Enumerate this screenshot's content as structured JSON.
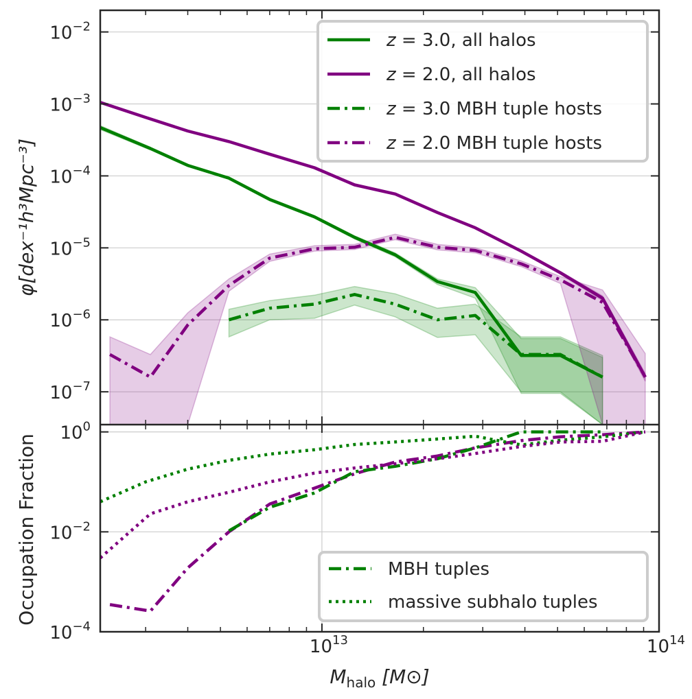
{
  "chart_data": [
    {
      "type": "line",
      "panel": "top",
      "xscale": "log",
      "yscale": "log",
      "xlim": [
        2200000000000.0,
        100000000000000.0
      ],
      "ylim": [
        3.5e-08,
        0.02
      ],
      "grid": true,
      "ylabel": "φ[dex⁻¹h³Mpc⁻³]",
      "yticks": [
        {
          "value": 0.01,
          "base": "10",
          "exp": "−2"
        },
        {
          "value": 0.001,
          "base": "10",
          "exp": "−3"
        },
        {
          "value": 0.0001,
          "base": "10",
          "exp": "−4"
        },
        {
          "value": 1e-05,
          "base": "10",
          "exp": "−5"
        },
        {
          "value": 1e-06,
          "base": "10",
          "exp": "−6"
        },
        {
          "value": 1e-07,
          "base": "10",
          "exp": "−7"
        }
      ],
      "legend": {
        "placement": "upper-right",
        "entries": [
          {
            "label": "z = 3.0, all halos",
            "color": "#008000",
            "dash": "solid"
          },
          {
            "label": "z = 2.0, all halos",
            "color": "#800080",
            "dash": "solid"
          },
          {
            "label": "z = 3.0 MBH tuple hosts",
            "color": "#008000",
            "dash": "dashdot"
          },
          {
            "label": "z = 2.0 MBH tuple hosts",
            "color": "#800080",
            "dash": "dashdot"
          }
        ]
      },
      "series": [
        {
          "name": "z = 3.0, all halos",
          "color": "#008000",
          "dash": "solid",
          "x": [
            2200000000000.0,
            3100000000000.0,
            4000000000000.0,
            5300000000000.0,
            7000000000000.0,
            9500000000000.0,
            12500000000000.0,
            16500000000000.0,
            22000000000000.0,
            28500000000000.0,
            39000000000000.0,
            51000000000000.0,
            68000000000000.0
          ],
          "y": [
            0.00047,
            0.00024,
            0.00014,
            9.3e-05,
            4.7e-05,
            2.7e-05,
            1.4e-05,
            8e-06,
            3.4e-06,
            2.4e-06,
            3.2e-07,
            3.2e-07,
            1.6e-07
          ],
          "band_low": [
            0.00044,
            0.00023,
            0.000135,
            9e-05,
            4.5e-05,
            2.6e-05,
            1.33e-05,
            7.5e-06,
            3.1e-06,
            2e-06,
            9.5e-08,
            9.5e-08,
            3.5e-08
          ],
          "band_high": [
            0.0005,
            0.00025,
            0.000145,
            9.6e-05,
            4.9e-05,
            2.8e-05,
            1.47e-05,
            8.5e-06,
            3.7e-06,
            2.8e-06,
            5.5e-07,
            5.5e-07,
            3e-07
          ]
        },
        {
          "name": "z = 2.0, all halos",
          "color": "#800080",
          "dash": "solid",
          "x": [
            2200000000000.0,
            3000000000000.0,
            4000000000000.0,
            5300000000000.0,
            7000000000000.0,
            9500000000000.0,
            12500000000000.0,
            16500000000000.0,
            22000000000000.0,
            28500000000000.0,
            39000000000000.0,
            51000000000000.0,
            68000000000000.0,
            91000000000000.0
          ],
          "y": [
            0.00105,
            0.00065,
            0.00042,
            0.0003,
            0.0002,
            0.00013,
            7.5e-05,
            5.6e-05,
            3.1e-05,
            1.9e-05,
            9e-06,
            4.5e-06,
            2e-06,
            1.6e-07
          ],
          "band_low": [
            0.00103,
            0.00064,
            0.00041,
            0.000295,
            0.000197,
            0.000128,
            7.4e-05,
            5.5e-05,
            3.05e-05,
            1.85e-05,
            8.7e-06,
            4.3e-06,
            1.85e-06,
            1.4e-07
          ],
          "band_high": [
            0.00107,
            0.00066,
            0.00043,
            0.000305,
            0.000203,
            0.000132,
            7.6e-05,
            5.7e-05,
            3.15e-05,
            1.95e-05,
            9.3e-06,
            4.7e-06,
            2.15e-06,
            1.8e-07
          ]
        },
        {
          "name": "z = 3.0 MBH tuple hosts",
          "color": "#008000",
          "dash": "dashdot",
          "x": [
            5300000000000.0,
            7000000000000.0,
            9500000000000.0,
            12500000000000.0,
            16500000000000.0,
            22000000000000.0,
            28500000000000.0,
            39000000000000.0,
            51000000000000.0,
            68000000000000.0
          ],
          "y": [
            1e-06,
            1.45e-06,
            1.65e-06,
            2.25e-06,
            1.65e-06,
            1e-06,
            1.15e-06,
            3.3e-07,
            3.3e-07,
            1.6e-07
          ],
          "band_low": [
            5.8e-07,
            1e-06,
            1.05e-06,
            1.6e-06,
            1.1e-06,
            5.7e-07,
            6.2e-07,
            1e-07,
            1e-07,
            3.5e-08
          ],
          "band_high": [
            1.4e-06,
            1.85e-06,
            2.2e-06,
            2.9e-06,
            2.3e-06,
            1.45e-06,
            1.65e-06,
            5.8e-07,
            5.8e-07,
            3.2e-07
          ]
        },
        {
          "name": "z = 2.0 MBH tuple hosts",
          "color": "#800080",
          "dash": "dashdot",
          "x": [
            2350000000000.0,
            3100000000000.0,
            4000000000000.0,
            5300000000000.0,
            7000000000000.0,
            9500000000000.0,
            12500000000000.0,
            16500000000000.0,
            22000000000000.0,
            28500000000000.0,
            39000000000000.0,
            51000000000000.0,
            68000000000000.0,
            91000000000000.0
          ],
          "y": [
            3.3e-07,
            1.6e-07,
            8.5e-07,
            3e-06,
            7.2e-06,
            9.7e-06,
            1.02e-05,
            1.4e-05,
            1.02e-05,
            9.2e-06,
            6e-06,
            3.6e-06,
            1.75e-06,
            1.6e-07
          ],
          "band_low": [
            3.5e-08,
            3.5e-08,
            3.5e-08,
            2.5e-06,
            6.5e-06,
            9e-06,
            9.5e-06,
            1.3e-05,
            9.4e-06,
            8.5e-06,
            5.5e-06,
            3.2e-06,
            3.5e-08,
            3.5e-08
          ],
          "band_high": [
            5.8e-07,
            3.3e-07,
            1.25e-06,
            3.7e-06,
            8.2e-06,
            1.07e-05,
            1.12e-05,
            1.55e-05,
            1.12e-05,
            1e-05,
            6.6e-06,
            4e-06,
            2.6e-06,
            3.4e-07
          ]
        }
      ]
    },
    {
      "type": "line",
      "panel": "bottom",
      "xscale": "log",
      "yscale": "log",
      "xlim": [
        2200000000000.0,
        100000000000000.0
      ],
      "ylim": [
        0.0001,
        1.4
      ],
      "grid": true,
      "xlabel": "M_halo [M⊙]",
      "ylabel": "Occupation Fraction",
      "xticks": [
        {
          "value": 10000000000000.0,
          "base": "10",
          "exp": "13"
        },
        {
          "value": 100000000000000.0,
          "base": "10",
          "exp": "14"
        }
      ],
      "yticks": [
        {
          "value": 1.0,
          "base": "10",
          "exp": "0"
        },
        {
          "value": 0.01,
          "base": "10",
          "exp": "−2"
        },
        {
          "value": 0.0001,
          "base": "10",
          "exp": "−4"
        }
      ],
      "legend": {
        "placement": "lower-right",
        "entries": [
          {
            "label": "MBH tuples",
            "color": "#008000",
            "dash": "dashdot"
          },
          {
            "label": "massive subhalo tuples",
            "color": "#008000",
            "dash": "dotted"
          }
        ]
      },
      "series": [
        {
          "name": "MBH tuples (z = 2.0)",
          "color": "#800080",
          "dash": "dashdot",
          "x": [
            2350000000000.0,
            3100000000000.0,
            4000000000000.0,
            5300000000000.0,
            7000000000000.0,
            9500000000000.0,
            12500000000000.0,
            16500000000000.0,
            22000000000000.0,
            28500000000000.0,
            39000000000000.0,
            51000000000000.0,
            68000000000000.0,
            91000000000000.0
          ],
          "y": [
            0.00035,
            0.00026,
            0.0019,
            0.01,
            0.036,
            0.075,
            0.145,
            0.25,
            0.33,
            0.48,
            0.67,
            0.8,
            0.88,
            1.0
          ]
        },
        {
          "name": "MBH tuples (z = 3.0)",
          "color": "#008000",
          "dash": "dashdot",
          "x": [
            5300000000000.0,
            7000000000000.0,
            9500000000000.0,
            12500000000000.0,
            16500000000000.0,
            22000000000000.0,
            28500000000000.0,
            39000000000000.0,
            51000000000000.0,
            68000000000000.0
          ],
          "y": [
            0.0105,
            0.031,
            0.06,
            0.16,
            0.205,
            0.29,
            0.48,
            1.0,
            1.0,
            1.0
          ]
        },
        {
          "name": "massive subhalo tuples (z = 3.0)",
          "color": "#008000",
          "dash": "dotted",
          "x": [
            2200000000000.0,
            3000000000000.0,
            4000000000000.0,
            5300000000000.0,
            7000000000000.0,
            9500000000000.0,
            12500000000000.0,
            16500000000000.0,
            22000000000000.0,
            28500000000000.0,
            39000000000000.0,
            51000000000000.0,
            68000000000000.0,
            91000000000000.0
          ],
          "y": [
            0.04,
            0.1,
            0.18,
            0.27,
            0.36,
            0.44,
            0.56,
            0.63,
            0.72,
            0.82,
            0.55,
            0.68,
            0.8,
            1.0
          ]
        },
        {
          "name": "massive subhalo tuples (z = 2.0)",
          "color": "#800080",
          "dash": "dotted",
          "x": [
            2200000000000.0,
            3100000000000.0,
            4000000000000.0,
            5300000000000.0,
            7000000000000.0,
            9500000000000.0,
            12500000000000.0,
            16500000000000.0,
            22000000000000.0,
            28500000000000.0,
            39000000000000.0,
            51000000000000.0,
            68000000000000.0,
            91000000000000.0
          ],
          "y": [
            0.003,
            0.023,
            0.04,
            0.062,
            0.1,
            0.15,
            0.19,
            0.23,
            0.29,
            0.37,
            0.51,
            0.63,
            0.65,
            1.0
          ]
        }
      ]
    }
  ]
}
